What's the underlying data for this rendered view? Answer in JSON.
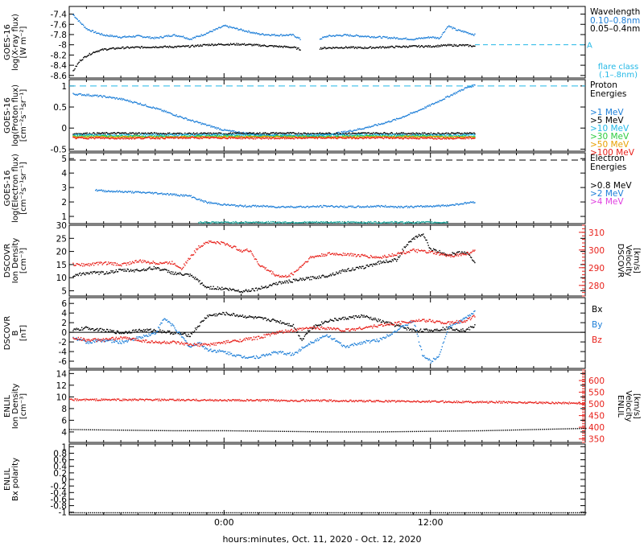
{
  "figure": {
    "xlabel": "hours:minutes, Oct. 11, 2020 - Oct. 12, 2020",
    "x_ticks": [
      {
        "label": "0:00",
        "t": 0
      },
      {
        "label": "12:00",
        "t": 12
      }
    ],
    "x_range_hours": [
      -9,
      21
    ]
  },
  "colors": {
    "black": "#000000",
    "blue": "#1e7fd8",
    "cyan": "#22b8e6",
    "green": "#2ecc40",
    "orange": "#e8a000",
    "red": "#e8201a",
    "magenta": "#e040e0",
    "teal": "#1aa39a"
  },
  "panels": [
    {
      "id": "xray",
      "ylabel": [
        "GOES-16",
        "log(X-ray flux)",
        "[W m⁻²]"
      ],
      "ylim": [
        -8.65,
        -7.25
      ],
      "yticks": [
        -7.4,
        -7.6,
        -7.8,
        -8.0,
        -8.2,
        -8.4,
        -8.6
      ],
      "legend_title": "Wavelength",
      "legend": [
        {
          "label": "0.10–0.8nm",
          "color": "blue"
        },
        {
          "label": "0.05–0.4nm",
          "color": "black"
        }
      ],
      "flare_label": "A",
      "flare_legend": [
        "flare class",
        "(.1–.8nm)"
      ],
      "flare_level": -8.0
    },
    {
      "id": "proton",
      "ylabel": [
        "GOES-16",
        "log(Proton flux)",
        "[cm⁻²s⁻¹sr⁻¹]"
      ],
      "ylim": [
        -0.55,
        1.15
      ],
      "yticks": [
        1.0,
        0.5,
        0.0,
        -0.5
      ],
      "legend_title": [
        "Proton",
        "Energies"
      ],
      "legend": [
        {
          "label": ">1 MeV",
          "color": "blue"
        },
        {
          "label": ">5 MeV",
          "color": "black"
        },
        {
          "label": ">10 MeV",
          "color": "cyan"
        },
        {
          "label": ">30 MeV",
          "color": "green"
        },
        {
          "label": ">50 MeV",
          "color": "orange"
        },
        {
          "label": ">100 MeV",
          "color": "red"
        }
      ],
      "ref_level": 1.0
    },
    {
      "id": "electron",
      "ylabel": [
        "GOES-16",
        "log(Electron flux)",
        "[cm⁻²s⁻¹sr⁻¹]"
      ],
      "ylim": [
        0.5,
        5.4
      ],
      "yticks": [
        1,
        2,
        3,
        4,
        5
      ],
      "legend_title": [
        "Electron",
        "Energies"
      ],
      "legend": [
        {
          "label": ">0.8 MeV",
          "color": "black"
        },
        {
          "label": ">2 MeV",
          "color": "blue"
        },
        {
          "label": ">4 MeV",
          "color": "magenta"
        }
      ],
      "ref_level": 4.9
    },
    {
      "id": "dscovr-plasma",
      "ylabel": [
        "DSCOVR",
        "Ion Density",
        "[cm⁻³]"
      ],
      "ylim": [
        3,
        30
      ],
      "yticks": [
        5,
        10,
        15,
        20,
        25,
        30
      ],
      "y2label": [
        "DSCOVR",
        "Velocity",
        "[km/s]"
      ],
      "y2lim": [
        274,
        314
      ],
      "y2ticks": [
        280,
        290,
        300,
        310
      ]
    },
    {
      "id": "dscovr-mag",
      "ylabel": [
        "DSCOVR",
        "B",
        "[nT]"
      ],
      "ylim": [
        -7.5,
        7.2
      ],
      "yticks": [
        6,
        4,
        2,
        0,
        -2,
        -4,
        -6
      ],
      "legend": [
        {
          "label": "Bx",
          "color": "black"
        },
        {
          "label": "By",
          "color": "blue"
        },
        {
          "label": "Bz",
          "color": "red"
        }
      ],
      "zero_line": true
    },
    {
      "id": "enlil-plasma",
      "ylabel": [
        "ENLIL",
        "Ion Density",
        "[cm⁻³]"
      ],
      "ylim": [
        2.2,
        14.6
      ],
      "yticks": [
        4,
        6,
        8,
        10,
        12,
        14
      ],
      "y2label": [
        "ENLIL",
        "Velocity",
        "[km/s]"
      ],
      "y2lim": [
        335,
        645
      ],
      "y2ticks": [
        350,
        400,
        450,
        500,
        550,
        600
      ]
    },
    {
      "id": "enlil-polarity",
      "ylabel": [
        "ENLIL",
        "Bx polarity"
      ],
      "ylim": [
        -1.08,
        1.08
      ],
      "yticks": [
        1.0,
        0.8,
        0.6,
        0.4,
        0.2,
        0.0,
        -0.2,
        -0.4,
        -0.6,
        -0.8,
        -1.0
      ]
    }
  ],
  "chart_data": [
    {
      "type": "scatter",
      "title": "",
      "ylabel": "log(X-ray flux) [W m⁻²]",
      "series": [
        {
          "name": "0.10–0.8nm",
          "color": "blue",
          "x": [
            -8.8,
            -8.4,
            -8.0,
            -7.5,
            -7.0,
            -6.0,
            -5.0,
            -4.0,
            -3.0,
            -2.5,
            -2.0,
            -1.0,
            0.0,
            1.0,
            2.0,
            3.0,
            4.0,
            4.4,
            5.5,
            6.0,
            7.0,
            8.0,
            9.0,
            10.0,
            11.0,
            12.0,
            12.5,
            13.0,
            13.5,
            14.0,
            14.6
          ],
          "y": [
            -7.4,
            -7.55,
            -7.68,
            -7.75,
            -7.8,
            -7.84,
            -7.82,
            -7.86,
            -7.8,
            -7.82,
            -7.88,
            -7.76,
            -7.62,
            -7.7,
            -7.78,
            -7.8,
            -7.8,
            -7.88,
            -7.88,
            -7.82,
            -7.8,
            -7.82,
            -7.84,
            -7.86,
            -7.88,
            -7.84,
            -7.86,
            -7.62,
            -7.7,
            -7.74,
            -7.8
          ]
        },
        {
          "name": "0.05–0.4nm",
          "color": "black",
          "x": [
            -8.8,
            -8.4,
            -8.0,
            -7.5,
            -7.0,
            -6.0,
            -5.0,
            -4.0,
            -3.0,
            -2.0,
            -1.0,
            0.0,
            1.0,
            2.0,
            3.0,
            4.0,
            4.4,
            5.5,
            6.0,
            7.0,
            8.0,
            9.0,
            10.0,
            11.0,
            12.0,
            13.0,
            14.0,
            14.6
          ],
          "y": [
            -8.5,
            -8.3,
            -8.2,
            -8.12,
            -8.08,
            -8.05,
            -8.04,
            -8.03,
            -8.03,
            -8.02,
            -7.99,
            -7.98,
            -7.98,
            -8.0,
            -8.02,
            -8.04,
            -8.08,
            -8.06,
            -8.05,
            -8.04,
            -8.05,
            -8.04,
            -8.03,
            -8.02,
            -8.02,
            -8.0,
            -8.0,
            -8.02
          ]
        }
      ]
    },
    {
      "type": "scatter",
      "title": "",
      "ylabel": "log(Proton flux)",
      "series": [
        {
          "name": ">1 MeV",
          "color": "blue",
          "x": [
            -8.8,
            -8.0,
            -7.0,
            -6.0,
            -5.0,
            -4.0,
            -3.0,
            -2.0,
            -1.0,
            -0.5,
            0.0,
            1.0,
            2.0,
            3.0,
            4.0,
            5.0,
            6.0,
            7.0,
            8.0,
            9.0,
            10.0,
            11.0,
            12.0,
            13.0,
            14.0,
            14.6
          ],
          "y": [
            0.82,
            0.8,
            0.76,
            0.7,
            0.6,
            0.48,
            0.34,
            0.2,
            0.08,
            0.02,
            -0.04,
            -0.1,
            -0.14,
            -0.16,
            -0.18,
            -0.18,
            -0.14,
            -0.08,
            0.0,
            0.1,
            0.22,
            0.38,
            0.56,
            0.76,
            0.96,
            1.04
          ]
        },
        {
          "name": ">5 MeV",
          "color": "black",
          "x": [
            -8.8,
            -6.0,
            -3.0,
            0.0,
            3.0,
            6.0,
            9.0,
            12.0,
            14.6
          ],
          "y": [
            -0.12,
            -0.11,
            -0.12,
            -0.12,
            -0.11,
            -0.12,
            -0.11,
            -0.12,
            -0.11
          ]
        },
        {
          "name": ">10 MeV",
          "color": "cyan",
          "x": [
            -8.8,
            -6.0,
            -3.0,
            0.0,
            3.0,
            6.0,
            9.0,
            12.0,
            14.6
          ],
          "y": [
            -0.15,
            -0.16,
            -0.15,
            -0.15,
            -0.16,
            -0.15,
            -0.15,
            -0.16,
            -0.15
          ]
        },
        {
          "name": ">30 MeV",
          "color": "green",
          "x": [
            -8.8,
            -6.0,
            -3.0,
            0.0,
            3.0,
            6.0,
            9.0,
            12.0,
            14.6
          ],
          "y": [
            -0.18,
            -0.18,
            -0.19,
            -0.18,
            -0.18,
            -0.19,
            -0.18,
            -0.18,
            -0.19
          ]
        },
        {
          "name": ">50 MeV",
          "color": "orange",
          "x": [
            -8.8,
            -6.0,
            -3.0,
            0.0,
            3.0,
            6.0,
            9.0,
            12.0,
            14.6
          ],
          "y": [
            -0.2,
            -0.2,
            -0.21,
            -0.2,
            -0.2,
            -0.21,
            -0.2,
            -0.2,
            -0.21
          ]
        },
        {
          "name": ">100 MeV",
          "color": "red",
          "x": [
            -8.8,
            -6.0,
            -3.0,
            0.0,
            3.0,
            6.0,
            9.0,
            12.0,
            14.6
          ],
          "y": [
            -0.22,
            -0.23,
            -0.22,
            -0.22,
            -0.23,
            -0.22,
            -0.22,
            -0.23,
            -0.22
          ]
        }
      ]
    },
    {
      "type": "scatter",
      "title": "",
      "ylabel": "log(Electron flux)",
      "series": [
        {
          "name": ">0.8 MeV",
          "color": "black",
          "x": [],
          "y": []
        },
        {
          "name": ">2 MeV",
          "color": "blue",
          "x": [
            -7.5,
            -7.0,
            -6.0,
            -5.0,
            -4.0,
            -3.0,
            -2.0,
            -1.5,
            -1.0,
            0.0,
            1.0,
            2.0,
            3.0,
            4.0,
            5.0,
            6.0,
            7.0,
            8.0,
            9.0,
            10.0,
            11.0,
            12.0,
            13.0,
            14.0,
            14.6
          ],
          "y": [
            2.85,
            2.8,
            2.75,
            2.7,
            2.65,
            2.55,
            2.45,
            2.2,
            2.0,
            1.85,
            1.75,
            1.75,
            1.7,
            1.7,
            1.7,
            1.75,
            1.7,
            1.7,
            1.75,
            1.7,
            1.7,
            1.75,
            1.8,
            1.95,
            2.05
          ]
        },
        {
          "name": ">4 MeV",
          "color": "magenta",
          "x": [],
          "y": []
        },
        {
          "name": "",
          "color": "teal",
          "x": [
            -1.5,
            0.0,
            2.0,
            4.0,
            6.0,
            8.0,
            10.0,
            12.0,
            13.0
          ],
          "y": [
            0.62,
            0.62,
            0.62,
            0.62,
            0.62,
            0.62,
            0.62,
            0.62,
            0.62
          ]
        }
      ]
    },
    {
      "type": "scatter",
      "title": "",
      "ylabel": "Ion Density [cm⁻³]",
      "series": [
        {
          "name": "",
          "color": "black",
          "x": [
            -8.8,
            -8.0,
            -7.0,
            -6.0,
            -5.0,
            -4.0,
            -3.5,
            -3.0,
            -2.0,
            -1.5,
            -1.2,
            -1.0,
            0.0,
            1.0,
            2.0,
            3.0,
            4.0,
            5.0,
            6.0,
            7.0,
            8.0,
            9.0,
            10.0,
            10.5,
            11.0,
            11.5,
            12.0,
            13.0,
            14.0,
            14.6
          ],
          "y": [
            11,
            12,
            12,
            13,
            13,
            14,
            13,
            12,
            11,
            9,
            7,
            6.5,
            6,
            5,
            6,
            8,
            9,
            10,
            11,
            13,
            14,
            16,
            17,
            22,
            25,
            27,
            21,
            19,
            20,
            16
          ]
        },
        {
          "name": "",
          "color": "red",
          "axis": "y2",
          "x": [
            -8.8,
            -8.0,
            -7.0,
            -6.0,
            -5.0,
            -4.0,
            -3.0,
            -2.5,
            -2.0,
            -1.5,
            -1.0,
            0.0,
            1.0,
            1.5,
            2.0,
            3.0,
            3.5,
            4.0,
            5.0,
            6.0,
            7.0,
            8.0,
            9.0,
            10.0,
            11.0,
            12.0,
            13.0,
            14.0,
            14.6
          ],
          "y": [
            292,
            292,
            293,
            292,
            294,
            293,
            293,
            290,
            296,
            302,
            305,
            304,
            300,
            300,
            292,
            286,
            285,
            287,
            296,
            298,
            298,
            297,
            296,
            298,
            300,
            299,
            297,
            298,
            300
          ]
        }
      ]
    },
    {
      "type": "scatter",
      "title": "",
      "ylabel": "B [nT]",
      "series": [
        {
          "name": "Bx",
          "color": "black",
          "x": [
            -8.8,
            -8.0,
            -7.0,
            -6.0,
            -5.0,
            -4.0,
            -3.0,
            -2.0,
            -1.5,
            -1.0,
            0.0,
            1.0,
            2.0,
            3.0,
            4.0,
            4.5,
            5.0,
            6.0,
            7.0,
            8.0,
            9.0,
            10.0,
            11.0,
            12.0,
            13.0,
            14.0,
            14.6
          ],
          "y": [
            0.5,
            1.0,
            0.5,
            0.0,
            0.5,
            0.5,
            0.0,
            -0.5,
            1.5,
            3.5,
            4.0,
            3.5,
            3.0,
            2.5,
            1.5,
            -1.5,
            1.0,
            2.5,
            3.0,
            3.5,
            2.5,
            1.5,
            0.5,
            0.5,
            1.0,
            0.5,
            1.5
          ]
        },
        {
          "name": "By",
          "color": "blue",
          "x": [
            -8.8,
            -8.0,
            -7.0,
            -6.0,
            -5.0,
            -4.0,
            -3.5,
            -3.0,
            -2.0,
            -1.5,
            -1.0,
            0.0,
            1.0,
            2.0,
            3.0,
            4.0,
            5.0,
            6.0,
            7.0,
            8.0,
            9.0,
            10.0,
            11.0,
            11.5,
            12.0,
            12.5,
            13.0,
            14.0,
            14.6
          ],
          "y": [
            -1.0,
            -2.0,
            -1.5,
            -2.0,
            -1.0,
            0.0,
            3.0,
            1.5,
            -3.0,
            -2.0,
            -3.5,
            -4.0,
            -5.0,
            -5.0,
            -4.0,
            -4.5,
            -2.0,
            -0.5,
            -3.0,
            -2.0,
            -1.5,
            0.5,
            2.5,
            -4.5,
            -6.0,
            -4.5,
            1.0,
            3.0,
            4.5
          ]
        },
        {
          "name": "Bz",
          "color": "red",
          "x": [
            -8.8,
            -8.0,
            -7.0,
            -6.0,
            -5.0,
            -4.0,
            -3.0,
            -2.0,
            -1.0,
            0.0,
            1.0,
            2.0,
            3.0,
            4.0,
            5.0,
            6.0,
            7.0,
            8.0,
            9.0,
            10.0,
            11.0,
            12.0,
            13.0,
            14.0,
            14.6
          ],
          "y": [
            -1.0,
            -1.5,
            -1.5,
            -1.0,
            -1.5,
            -2.0,
            -2.0,
            -2.5,
            -2.5,
            -2.0,
            -1.5,
            -1.0,
            0.0,
            0.5,
            1.0,
            1.0,
            0.5,
            1.0,
            1.5,
            2.0,
            2.5,
            2.5,
            2.0,
            2.5,
            3.5
          ]
        }
      ]
    },
    {
      "type": "line",
      "title": "",
      "ylabel": "Ion Density [cm⁻³]",
      "series": [
        {
          "name": "",
          "color": "black",
          "dotted": true,
          "x": [
            -9,
            -6,
            -3,
            0,
            3,
            6,
            9,
            12,
            15,
            18,
            21
          ],
          "y": [
            4.5,
            4.4,
            4.3,
            4.3,
            4.2,
            4.1,
            4.1,
            4.2,
            4.3,
            4.5,
            4.7
          ]
        },
        {
          "name": "",
          "color": "red",
          "axis": "y2",
          "x": [
            -9,
            -6,
            -3,
            0,
            3,
            6,
            9,
            12,
            15,
            18,
            21
          ],
          "y": [
            520,
            520,
            519,
            518,
            517,
            516,
            514,
            512,
            510,
            508,
            505
          ]
        }
      ]
    },
    {
      "type": "line",
      "title": "",
      "ylabel": "Bx polarity",
      "series": [
        {
          "name": "",
          "color": "black",
          "dotted": true,
          "x": [
            -9,
            0,
            12,
            21
          ],
          "y": [
            -1.0,
            -1.0,
            -1.0,
            -1.0
          ]
        }
      ]
    }
  ]
}
